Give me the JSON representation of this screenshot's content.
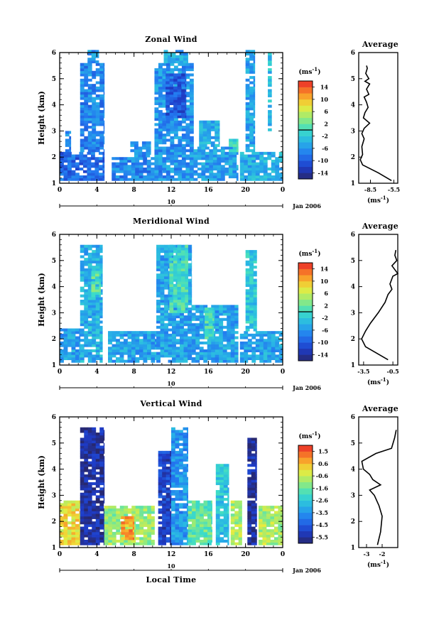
{
  "chart_data": [
    {
      "type": "heatmap",
      "title": "Zonal Wind",
      "ylabel": "Height (km)",
      "xlabel": "",
      "x_ticks": [
        "0",
        "4",
        "8",
        "12",
        "16",
        "20",
        "0"
      ],
      "y_ticks": [
        "1",
        "2",
        "3",
        "4",
        "5",
        "6"
      ],
      "xlim": [
        0,
        24
      ],
      "ylim": [
        1,
        6
      ],
      "date_label": "10",
      "month_label": "Jan 2006",
      "colorbar": {
        "unit": "(ms",
        "unit_exp": "-1",
        "unit_close": ")",
        "ticks": [
          "14",
          "10",
          "6",
          "2",
          "-2",
          "-6",
          "-10",
          "-14"
        ],
        "range": [
          -16,
          16
        ],
        "zero_line": 0
      },
      "average": {
        "title": "Average",
        "x_ticks": [
          "-8.5",
          "-5.5"
        ],
        "xlabel_unit": "(ms",
        "xlabel_exp": "-1",
        "xlabel_close": ")",
        "xlim": [
          -10,
          -5
        ],
        "profile": [
          [
            -9.0,
            5.5
          ],
          [
            -8.9,
            5.4
          ],
          [
            -9.1,
            5.2
          ],
          [
            -8.7,
            5.0
          ],
          [
            -9.2,
            4.9
          ],
          [
            -8.6,
            4.8
          ],
          [
            -9.0,
            4.6
          ],
          [
            -8.7,
            4.4
          ],
          [
            -9.3,
            4.3
          ],
          [
            -9.0,
            4.1
          ],
          [
            -8.8,
            3.9
          ],
          [
            -9.2,
            3.7
          ],
          [
            -9.4,
            3.5
          ],
          [
            -8.6,
            3.3
          ],
          [
            -9.3,
            3.1
          ],
          [
            -9.6,
            2.9
          ],
          [
            -9.3,
            2.7
          ],
          [
            -9.6,
            2.4
          ],
          [
            -9.5,
            2.1
          ],
          [
            -9.8,
            1.9
          ],
          [
            -9.5,
            1.7
          ],
          [
            -7.5,
            1.4
          ],
          [
            -5.8,
            1.1
          ]
        ]
      },
      "regions": [
        {
          "x0": 0,
          "x1": 4.8,
          "y0": 1.1,
          "y1": 2.2,
          "v": -9
        },
        {
          "x0": 0.6,
          "x1": 1.2,
          "y0": 2.2,
          "y1": 3.0,
          "v": -7
        },
        {
          "x0": 2.2,
          "x1": 4.8,
          "y0": 2.2,
          "y1": 5.6,
          "v": -7
        },
        {
          "x0": 3.0,
          "x1": 4.2,
          "y0": 5.6,
          "y1": 6.1,
          "v": -6
        },
        {
          "x0": 5.6,
          "x1": 11.0,
          "y0": 1.1,
          "y1": 2.0,
          "v": -7
        },
        {
          "x0": 7.6,
          "x1": 9.8,
          "y0": 2.0,
          "y1": 2.6,
          "v": -6
        },
        {
          "x0": 10.2,
          "x1": 14.4,
          "y0": 1.1,
          "y1": 5.6,
          "v": -6
        },
        {
          "x0": 11.2,
          "x1": 13.8,
          "y0": 5.6,
          "y1": 6.1,
          "v": -5
        },
        {
          "x0": 11.4,
          "x1": 13.6,
          "y0": 3.5,
          "y1": 5.2,
          "v": -10
        },
        {
          "x0": 14.4,
          "x1": 19.2,
          "y0": 1.1,
          "y1": 2.4,
          "v": -5
        },
        {
          "x0": 15.0,
          "x1": 17.2,
          "y0": 2.4,
          "y1": 3.4,
          "v": -4
        },
        {
          "x0": 18.2,
          "x1": 19.2,
          "y0": 2.2,
          "y1": 2.7,
          "v": 0
        },
        {
          "x0": 19.4,
          "x1": 24.0,
          "y0": 1.1,
          "y1": 2.2,
          "v": -4
        },
        {
          "x0": 20.0,
          "x1": 21.0,
          "y0": 2.2,
          "y1": 6.1,
          "v": -5
        },
        {
          "x0": 22.4,
          "x1": 22.8,
          "y0": 3.0,
          "y1": 6.0,
          "v": -3
        }
      ]
    },
    {
      "type": "heatmap",
      "title": "Meridional Wind",
      "ylabel": "Height (km)",
      "xlabel": "",
      "x_ticks": [
        "0",
        "4",
        "8",
        "12",
        "16",
        "20",
        "0"
      ],
      "y_ticks": [
        "1",
        "2",
        "3",
        "4",
        "5",
        "6"
      ],
      "xlim": [
        0,
        24
      ],
      "ylim": [
        1,
        6
      ],
      "date_label": "10",
      "month_label": "Jan 2006",
      "colorbar": {
        "unit": "(ms",
        "unit_exp": "-1",
        "unit_close": ")",
        "ticks": [
          "14",
          "10",
          "6",
          "2",
          "-2",
          "-6",
          "-10",
          "-14"
        ],
        "range": [
          -16,
          16
        ],
        "zero_line": 0
      },
      "average": {
        "title": "Average",
        "x_ticks": [
          "-3.5",
          "-0.5"
        ],
        "xlabel_unit": "(ms",
        "xlabel_exp": "-1",
        "xlabel_close": ")",
        "xlim": [
          -4,
          0
        ],
        "profile": [
          [
            -0.2,
            5.4
          ],
          [
            -0.3,
            5.2
          ],
          [
            -0.1,
            5.0
          ],
          [
            -0.6,
            4.8
          ],
          [
            0.0,
            4.5
          ],
          [
            -0.5,
            4.4
          ],
          [
            -0.8,
            4.1
          ],
          [
            -0.6,
            3.9
          ],
          [
            -1.0,
            3.7
          ],
          [
            -1.3,
            3.4
          ],
          [
            -2.0,
            3.0
          ],
          [
            -2.8,
            2.6
          ],
          [
            -3.3,
            2.3
          ],
          [
            -3.7,
            2.0
          ],
          [
            -3.3,
            1.7
          ],
          [
            -1.0,
            1.2
          ]
        ]
      },
      "regions": [
        {
          "x0": 0,
          "x1": 2.2,
          "y0": 1.1,
          "y1": 2.4,
          "v": -5
        },
        {
          "x0": 2.2,
          "x1": 4.6,
          "y0": 1.1,
          "y1": 5.6,
          "v": -4
        },
        {
          "x0": 3.4,
          "x1": 4.4,
          "y0": 3.6,
          "y1": 4.6,
          "v": 1
        },
        {
          "x0": 5.2,
          "x1": 10.4,
          "y0": 1.1,
          "y1": 2.3,
          "v": -5
        },
        {
          "x0": 10.4,
          "x1": 14.2,
          "y0": 1.1,
          "y1": 5.6,
          "v": -5
        },
        {
          "x0": 11.8,
          "x1": 13.8,
          "y0": 3.0,
          "y1": 5.6,
          "v": 0
        },
        {
          "x0": 14.2,
          "x1": 19.2,
          "y0": 1.1,
          "y1": 3.3,
          "v": -5
        },
        {
          "x0": 15.6,
          "x1": 16.6,
          "y0": 2.0,
          "y1": 3.2,
          "v": 0
        },
        {
          "x0": 19.4,
          "x1": 24.0,
          "y0": 1.1,
          "y1": 2.3,
          "v": -5
        },
        {
          "x0": 20.0,
          "x1": 21.2,
          "y0": 2.3,
          "y1": 5.4,
          "v": -2
        }
      ]
    },
    {
      "type": "heatmap",
      "title": "Vertical Wind",
      "ylabel": "Height (km)",
      "xlabel": "Local Time",
      "x_ticks": [
        "0",
        "4",
        "8",
        "12",
        "16",
        "20",
        "0"
      ],
      "y_ticks": [
        "1",
        "2",
        "3",
        "4",
        "5",
        "6"
      ],
      "xlim": [
        0,
        24
      ],
      "ylim": [
        1,
        6
      ],
      "date_label": "10",
      "month_label": "Jan 2006",
      "colorbar": {
        "unit": "(ms",
        "unit_exp": "-1",
        "unit_close": ")",
        "ticks": [
          "1.5",
          "0.6",
          "-0.6",
          "-1.6",
          "-2.6",
          "-3.5",
          "-4.5",
          "-5.5"
        ],
        "range": [
          -6,
          2
        ],
        "zero_line": null
      },
      "average": {
        "title": "Average",
        "x_ticks": [
          "-3",
          "-2"
        ],
        "xlabel_unit": "(ms",
        "xlabel_exp": "-1",
        "xlabel_close": ")",
        "xlim": [
          -3.5,
          -1.0
        ],
        "profile": [
          [
            -1.1,
            5.5
          ],
          [
            -1.2,
            5.2
          ],
          [
            -1.4,
            4.8
          ],
          [
            -2.4,
            4.6
          ],
          [
            -3.3,
            4.3
          ],
          [
            -3.2,
            4.0
          ],
          [
            -2.8,
            3.8
          ],
          [
            -2.6,
            3.6
          ],
          [
            -2.1,
            3.4
          ],
          [
            -2.8,
            3.2
          ],
          [
            -2.5,
            3.0
          ],
          [
            -2.2,
            2.6
          ],
          [
            -2.0,
            2.2
          ],
          [
            -2.1,
            1.6
          ],
          [
            -2.3,
            1.1
          ]
        ]
      },
      "regions": [
        {
          "x0": 0,
          "x1": 2.2,
          "y0": 1.1,
          "y1": 2.8,
          "v": 0
        },
        {
          "x0": 2.2,
          "x1": 4.8,
          "y0": 1.1,
          "y1": 5.6,
          "v": -5.5
        },
        {
          "x0": 4.8,
          "x1": 10.2,
          "y0": 1.1,
          "y1": 2.6,
          "v": -1
        },
        {
          "x0": 6.6,
          "x1": 8.0,
          "y0": 1.3,
          "y1": 2.2,
          "v": 0.8
        },
        {
          "x0": 10.6,
          "x1": 12.0,
          "y0": 1.1,
          "y1": 4.7,
          "v": -5.0
        },
        {
          "x0": 12.0,
          "x1": 13.8,
          "y0": 1.1,
          "y1": 5.6,
          "v": -3.5
        },
        {
          "x0": 13.8,
          "x1": 16.4,
          "y0": 1.1,
          "y1": 2.8,
          "v": -1.6
        },
        {
          "x0": 16.8,
          "x1": 18.2,
          "y0": 1.1,
          "y1": 4.2,
          "v": -2.6
        },
        {
          "x0": 18.4,
          "x1": 19.6,
          "y0": 1.1,
          "y1": 2.8,
          "v": -0.8
        },
        {
          "x0": 20.2,
          "x1": 21.2,
          "y0": 1.1,
          "y1": 5.2,
          "v": -5.5
        },
        {
          "x0": 21.4,
          "x1": 24.0,
          "y0": 1.1,
          "y1": 2.6,
          "v": -0.8
        }
      ]
    }
  ]
}
